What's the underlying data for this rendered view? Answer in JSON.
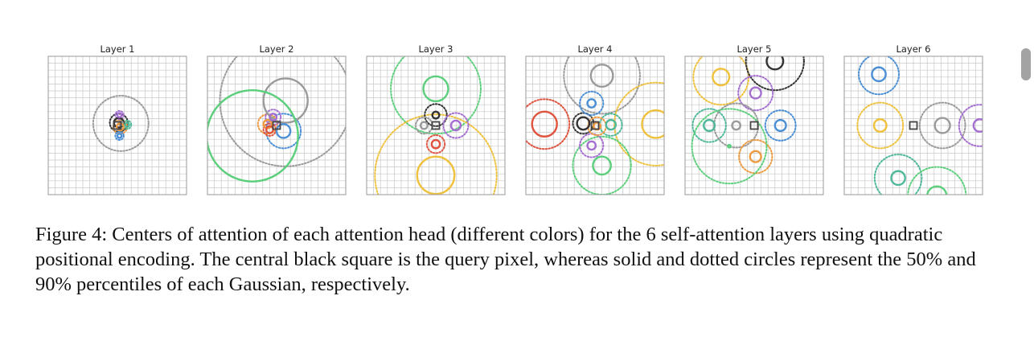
{
  "figure": {
    "caption": "Figure 4: Centers of attention of each attention head (different colors) for the 6 self-attention layers using quadratic positional encoding. The central black square is the query pixel, whereas solid and dotted circles represent the 50% and 90% percentiles of each Gaussian, respectively."
  },
  "colors": {
    "black": "#333333",
    "gray": "#9a9a9a",
    "green": "#5ccf7c",
    "orange": "#ee9a3e",
    "blue": "#4a8fd6",
    "purple": "#a56fd1",
    "red": "#e0533e",
    "yellow": "#f0c13c",
    "teal": "#4fb89a",
    "grid": "#c8c8c8"
  },
  "chart_data": [
    {
      "type": "scatter",
      "title": "Layer 1",
      "xlim": [
        -10,
        10
      ],
      "ylim": [
        -10,
        10
      ],
      "grid": true,
      "query_marker": [
        0,
        0
      ],
      "heads": [
        {
          "color": "black",
          "center": [
            0.2,
            0.4
          ],
          "r50": 0.7,
          "r90": 1.3
        },
        {
          "color": "gray",
          "center": [
            0.5,
            0.3
          ],
          "r50": 0.3,
          "r90": 4.0
        },
        {
          "color": "orange",
          "center": [
            0.4,
            -0.2
          ],
          "r50": 0.5,
          "r90": 1.0
        },
        {
          "color": "blue",
          "center": [
            0.3,
            -1.5
          ],
          "r50": 0.3,
          "r90": 0.6
        },
        {
          "color": "purple",
          "center": [
            0.3,
            1.5
          ],
          "r50": 0.3,
          "r90": 0.6
        },
        {
          "color": "teal",
          "center": [
            1.4,
            0.1
          ],
          "r50": 0.3,
          "r90": 0.6
        }
      ]
    },
    {
      "type": "scatter",
      "title": "Layer 2",
      "xlim": [
        -10,
        10
      ],
      "ylim": [
        -10,
        10
      ],
      "grid": true,
      "query_marker": [
        0,
        0
      ],
      "heads": [
        {
          "color": "gray",
          "center": [
            1.3,
            3.6
          ],
          "r50": 3.2,
          "r90": 9.5
        },
        {
          "color": "green",
          "center": [
            -3.5,
            -1.5
          ],
          "r50": 6.6,
          "r90": 6.6
        },
        {
          "color": "blue",
          "center": [
            1.0,
            -0.8
          ],
          "r50": 1.0,
          "r90": 2.5
        },
        {
          "color": "orange",
          "center": [
            -1.3,
            0.2
          ],
          "r50": 0.6,
          "r90": 1.4
        },
        {
          "color": "purple",
          "center": [
            -0.5,
            1.2
          ],
          "r50": 0.5,
          "r90": 1.1
        },
        {
          "color": "red",
          "center": [
            -1.0,
            -0.6
          ],
          "r50": 0.5,
          "r90": 0.9
        }
      ]
    },
    {
      "type": "scatter",
      "title": "Layer 3",
      "xlim": [
        -10,
        10
      ],
      "ylim": [
        -10,
        10
      ],
      "grid": true,
      "query_marker": [
        0,
        0
      ],
      "heads": [
        {
          "color": "green",
          "center": [
            0,
            5.3
          ],
          "r50": 1.8,
          "r90": 6.5
        },
        {
          "color": "yellow",
          "center": [
            0,
            -7.2
          ],
          "r50": 2.7,
          "r90": 8.8
        },
        {
          "color": "black",
          "center": [
            0,
            1.5
          ],
          "r50": 0.5,
          "r90": 1.6
        },
        {
          "color": "purple",
          "center": [
            2.9,
            0
          ],
          "r50": 0.7,
          "r90": 1.8
        },
        {
          "color": "red",
          "center": [
            0,
            -2.7
          ],
          "r50": 0.6,
          "r90": 1.3
        },
        {
          "color": "gray",
          "center": [
            -1.7,
            0
          ],
          "r50": 0.5,
          "r90": 1.2
        }
      ]
    },
    {
      "type": "scatter",
      "title": "Layer 4",
      "xlim": [
        -10,
        10
      ],
      "ylim": [
        -10,
        10
      ],
      "grid": true,
      "query_marker": [
        0,
        0
      ],
      "heads": [
        {
          "color": "gray",
          "center": [
            1.0,
            7.2
          ],
          "r50": 1.6,
          "r90": 5.5
        },
        {
          "color": "red",
          "center": [
            -7.3,
            0.2
          ],
          "r50": 1.8,
          "r90": 3.6
        },
        {
          "color": "yellow",
          "center": [
            8.8,
            0.2
          ],
          "r50": 2.0,
          "r90": 6.0
        },
        {
          "color": "green",
          "center": [
            1.0,
            -5.8
          ],
          "r50": 1.3,
          "r90": 4.2
        },
        {
          "color": "black",
          "center": [
            -1.7,
            0.3
          ],
          "r50": 0.9,
          "r90": 1.5
        },
        {
          "color": "blue",
          "center": [
            -0.5,
            3.2
          ],
          "r50": 0.6,
          "r90": 1.7
        },
        {
          "color": "purple",
          "center": [
            -0.5,
            -2.9
          ],
          "r50": 0.6,
          "r90": 1.7
        },
        {
          "color": "teal",
          "center": [
            2.3,
            0.1
          ],
          "r50": 0.7,
          "r90": 1.6
        },
        {
          "color": "orange",
          "center": [
            0.3,
            -0.1
          ],
          "r50": 0.5,
          "r90": 1.3
        }
      ]
    },
    {
      "type": "scatter",
      "title": "Layer 5",
      "xlim": [
        -10,
        10
      ],
      "ylim": [
        -10,
        10
      ],
      "grid": true,
      "query_marker": [
        0,
        0
      ],
      "heads": [
        {
          "color": "yellow",
          "center": [
            -4.8,
            7.0
          ],
          "r50": 1.2,
          "r90": 4.0
        },
        {
          "color": "black",
          "center": [
            3.0,
            9.3
          ],
          "r50": 1.2,
          "r90": 4.2
        },
        {
          "color": "purple",
          "center": [
            0.2,
            4.7
          ],
          "r50": 0.8,
          "r90": 2.5
        },
        {
          "color": "teal",
          "center": [
            -6.5,
            0
          ],
          "r50": 0.8,
          "r90": 2.4
        },
        {
          "color": "gray",
          "center": [
            -2.6,
            0
          ],
          "r50": 0.6,
          "r90": 3.2
        },
        {
          "color": "blue",
          "center": [
            3.8,
            0
          ],
          "r50": 0.8,
          "r90": 2.2
        },
        {
          "color": "orange",
          "center": [
            0.2,
            -4.5
          ],
          "r50": 0.8,
          "r90": 2.4
        },
        {
          "color": "green",
          "center": [
            -3.6,
            -3.0
          ],
          "r50": 0.2,
          "r90": 5.4
        }
      ]
    },
    {
      "type": "scatter",
      "title": "Layer 6",
      "xlim": [
        -10,
        10
      ],
      "ylim": [
        -10,
        10
      ],
      "grid": true,
      "query_marker": [
        0,
        0
      ],
      "heads": [
        {
          "color": "blue",
          "center": [
            -5.0,
            7.4
          ],
          "r50": 1.0,
          "r90": 2.9
        },
        {
          "color": "yellow",
          "center": [
            -4.8,
            0
          ],
          "r50": 0.9,
          "r90": 3.3
        },
        {
          "color": "gray",
          "center": [
            4.2,
            0
          ],
          "r50": 1.1,
          "r90": 3.3
        },
        {
          "color": "purple",
          "center": [
            9.6,
            0
          ],
          "r50": 0.9,
          "r90": 3.0
        },
        {
          "color": "teal",
          "center": [
            -2.2,
            -7.6
          ],
          "r50": 1.0,
          "r90": 3.4
        },
        {
          "color": "green",
          "center": [
            3.4,
            -10.2
          ],
          "r50": 1.4,
          "r90": 4.2
        }
      ]
    }
  ]
}
